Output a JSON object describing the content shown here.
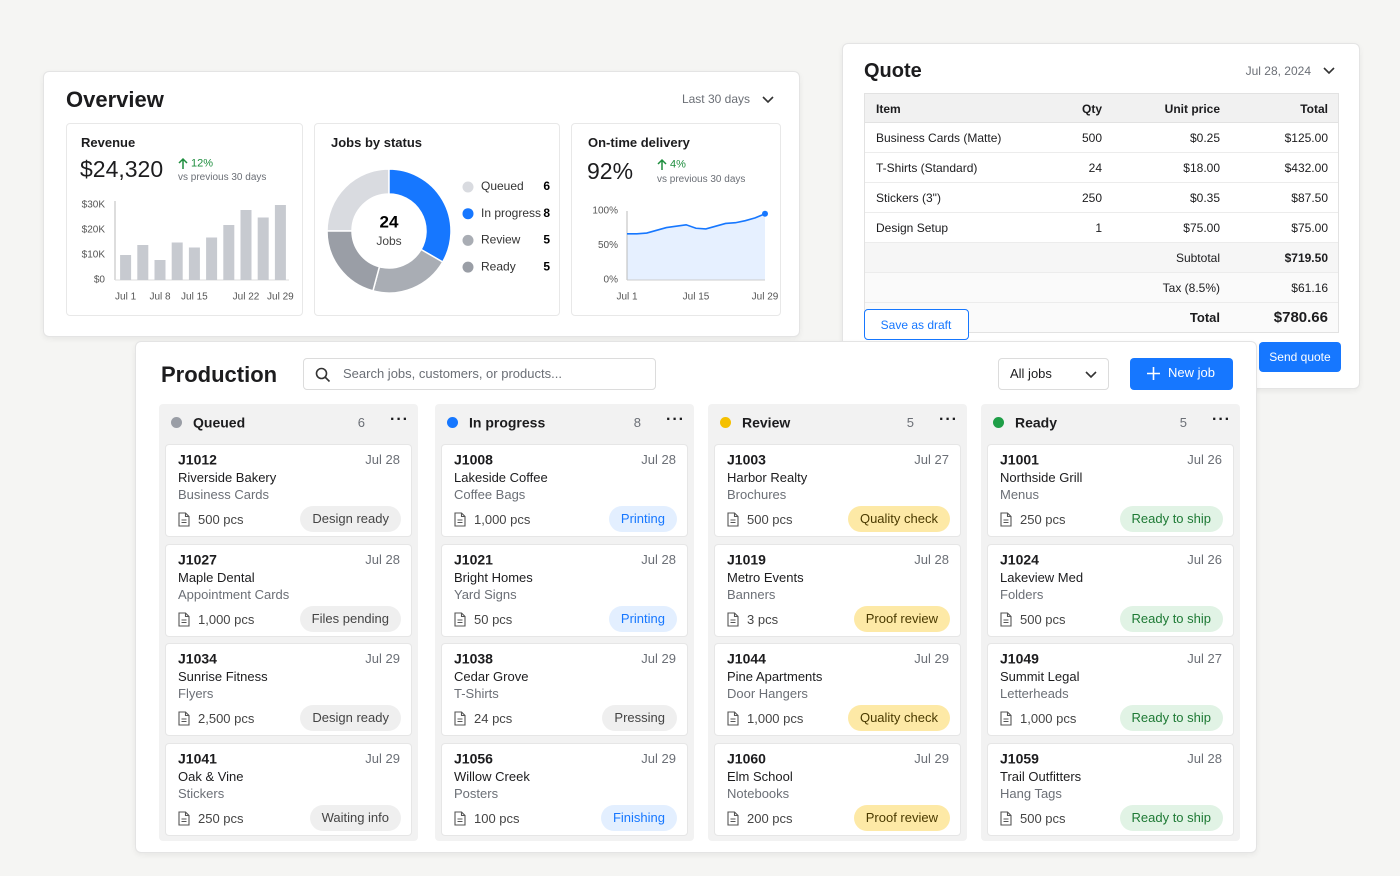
{
  "overview": {
    "title": "Overview",
    "range": "Last 30 days",
    "revenue": {
      "title": "Revenue",
      "value": "$24,320",
      "change": "12%",
      "note": "vs previous 30 days"
    },
    "jobs": {
      "title": "Jobs by status"
    },
    "delivery": {
      "title": "On-time delivery",
      "value": "92%",
      "change": "4%",
      "note": "vs previous 30 days"
    }
  },
  "chart_data": [
    {
      "type": "bar",
      "categories": [
        "Jul 1",
        null,
        "Jul 8",
        null,
        "Jul 15",
        null,
        null,
        "Jul 22",
        null,
        "Jul 29"
      ],
      "values": [
        10000,
        14000,
        8000,
        15000,
        13000,
        17000,
        22000,
        28000,
        25000,
        30000
      ],
      "color": "#c7cad0",
      "ylim": [
        0,
        30000
      ],
      "yticks": [
        {
          "value": 0,
          "label": "$0"
        },
        {
          "value": 10000,
          "label": "$10K"
        },
        {
          "value": 20000,
          "label": "$20K"
        },
        {
          "value": 30000,
          "label": "$30K"
        }
      ],
      "grid": false
    },
    {
      "type": "donut",
      "categories": [
        "Queued",
        "In progress",
        "Review",
        "Ready"
      ],
      "values": [
        6,
        8,
        5,
        5
      ],
      "colors": [
        "#d9dbe0",
        "#1677ff",
        "#a9adb4",
        "#9a9ea6"
      ],
      "total": 24,
      "center_label": "Jobs"
    },
    {
      "type": "line",
      "categories": [
        "Jul 1",
        null,
        null,
        null,
        null,
        null,
        null,
        "Jul 15",
        null,
        null,
        null,
        null,
        null,
        null,
        "Jul 29"
      ],
      "values": [
        67,
        67,
        68,
        72,
        76,
        78,
        80,
        75,
        74,
        78,
        82,
        83,
        86,
        90,
        96
      ],
      "color": "#1677ff",
      "ylim": [
        0,
        100
      ],
      "yticks": [
        {
          "value": 0,
          "label": "0%"
        },
        {
          "value": 50,
          "label": "50%"
        },
        {
          "value": 100,
          "label": "100%"
        }
      ],
      "grid": false
    }
  ],
  "quote": {
    "title": "Quote",
    "date": "Jul 28, 2024",
    "headers": [
      "Item",
      "Qty",
      "Unit price",
      "Total"
    ],
    "rows": [
      {
        "item": "Business Cards (Matte)",
        "qty": 500,
        "unit_price": "$0.25",
        "total": "$125.00"
      },
      {
        "item": "T-Shirts (Standard)",
        "qty": 24,
        "unit_price": "$18.00",
        "total": "$432.00"
      },
      {
        "item": "Stickers (3\")",
        "qty": 250,
        "unit_price": "$0.35",
        "total": "$87.50"
      },
      {
        "item": "Design Setup",
        "qty": 1,
        "unit_price": "$75.00",
        "total": "$75.00"
      }
    ],
    "subtotal_label": "Subtotal",
    "subtotal": "$719.50",
    "tax_label": "Tax (8.5%)",
    "tax": "$61.16",
    "total_label": "Total",
    "total": "$780.66",
    "draft_button": "Save as draft",
    "send_button": "Send quote"
  },
  "production": {
    "title": "Production",
    "search_placeholder": "Search jobs, customers, or products...",
    "filter": "All jobs",
    "new_button": "New job",
    "columns": [
      {
        "name": "Queued",
        "count": 6,
        "color": "#9a9ea6",
        "cards": [
          {
            "id": "J1012",
            "date": "Jul 28",
            "customer": "Riverside Bakery",
            "product": "Business Cards",
            "qty": "500 pcs",
            "status": "Design ready",
            "tone": "neutral"
          },
          {
            "id": "J1027",
            "date": "Jul 28",
            "customer": "Maple Dental",
            "product": "Appointment Cards",
            "qty": "1,000 pcs",
            "status": "Files pending",
            "tone": "neutral"
          },
          {
            "id": "J1034",
            "date": "Jul 29",
            "customer": "Sunrise Fitness",
            "product": "Flyers",
            "qty": "2,500 pcs",
            "status": "Design ready",
            "tone": "neutral"
          },
          {
            "id": "J1041",
            "date": "Jul 29",
            "customer": "Oak & Vine",
            "product": "Stickers",
            "qty": "250 pcs",
            "status": "Waiting info",
            "tone": "neutral"
          }
        ]
      },
      {
        "name": "In progress",
        "count": 8,
        "color": "#1677ff",
        "cards": [
          {
            "id": "J1008",
            "date": "Jul 28",
            "customer": "Lakeside Coffee",
            "product": "Coffee Bags",
            "qty": "1,000 pcs",
            "status": "Printing",
            "tone": "blue"
          },
          {
            "id": "J1021",
            "date": "Jul 28",
            "customer": "Bright Homes",
            "product": "Yard Signs",
            "qty": "50 pcs",
            "status": "Printing",
            "tone": "blue"
          },
          {
            "id": "J1038",
            "date": "Jul 29",
            "customer": "Cedar Grove",
            "product": "T-Shirts",
            "qty": "24 pcs",
            "status": "Pressing",
            "tone": "neutral"
          },
          {
            "id": "J1056",
            "date": "Jul 29",
            "customer": "Willow Creek",
            "product": "Posters",
            "qty": "100 pcs",
            "status": "Finishing",
            "tone": "blue"
          }
        ]
      },
      {
        "name": "Review",
        "count": 5,
        "color": "#f5c000",
        "cards": [
          {
            "id": "J1003",
            "date": "Jul 27",
            "customer": "Harbor Realty",
            "product": "Brochures",
            "qty": "500 pcs",
            "status": "Quality check",
            "tone": "yellow"
          },
          {
            "id": "J1019",
            "date": "Jul 28",
            "customer": "Metro Events",
            "product": "Banners",
            "qty": "3 pcs",
            "status": "Proof review",
            "tone": "yellow"
          },
          {
            "id": "J1044",
            "date": "Jul 29",
            "customer": "Pine Apartments",
            "product": "Door Hangers",
            "qty": "1,000 pcs",
            "status": "Quality check",
            "tone": "yellow"
          },
          {
            "id": "J1060",
            "date": "Jul 29",
            "customer": "Elm School",
            "product": "Notebooks",
            "qty": "200 pcs",
            "status": "Proof review",
            "tone": "yellow"
          }
        ]
      },
      {
        "name": "Ready",
        "count": 5,
        "color": "#1e9e47",
        "cards": [
          {
            "id": "J1001",
            "date": "Jul 26",
            "customer": "Northside Grill",
            "product": "Menus",
            "qty": "250 pcs",
            "status": "Ready to ship",
            "tone": "green"
          },
          {
            "id": "J1024",
            "date": "Jul 26",
            "customer": "Lakeview Med",
            "product": "Folders",
            "qty": "500 pcs",
            "status": "Ready to ship",
            "tone": "green"
          },
          {
            "id": "J1049",
            "date": "Jul 27",
            "customer": "Summit Legal",
            "product": "Letterheads",
            "qty": "1,000 pcs",
            "status": "Ready to ship",
            "tone": "green"
          },
          {
            "id": "J1059",
            "date": "Jul 28",
            "customer": "Trail Outfitters",
            "product": "Hang Tags",
            "qty": "500 pcs",
            "status": "Ready to ship",
            "tone": "green"
          }
        ]
      }
    ]
  }
}
